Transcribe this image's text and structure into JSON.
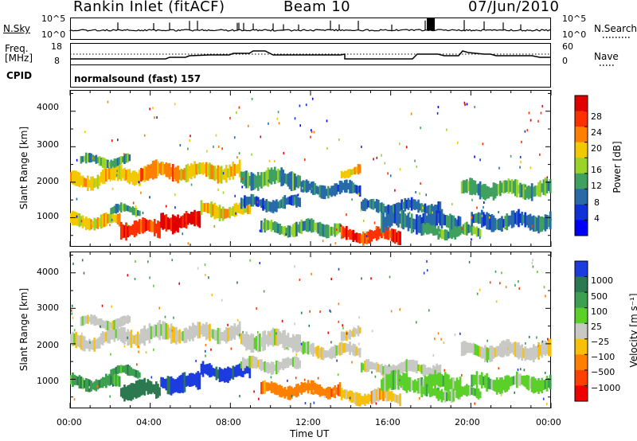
{
  "header": {
    "title": "Rankin Inlet (fitACF)",
    "beam": "Beam 10",
    "date": "07/Jun/2010"
  },
  "top_strip": {
    "left_label": "N.Sky",
    "left_ticks": [
      "10^5",
      "10^0"
    ],
    "right_ticks": [
      "10^5",
      "10^0"
    ],
    "right_label": "N.Search"
  },
  "freq_strip": {
    "left_label_1": "Freq.",
    "left_label_2": "[MHz]",
    "left_ticks": [
      "18",
      "8"
    ],
    "right_ticks": [
      "60",
      "0"
    ],
    "right_label": "Nave",
    "cpid_label": "CPID",
    "cpid_value": "normalsound (fast) 157"
  },
  "chart_data": [
    {
      "type": "heatmap",
      "ylabel": "Slant Range [km]",
      "yticks": [
        "4000",
        "3000",
        "2000",
        "1000"
      ],
      "ylim": [
        180,
        4600
      ],
      "xlim": [
        0,
        24
      ],
      "colorbar": {
        "label": "Power [dB]",
        "ticks": [
          "28",
          "24",
          "20",
          "16",
          "12",
          "8",
          "4"
        ],
        "colors": [
          "#e00000",
          "#ff3000",
          "#ff8000",
          "#f2c800",
          "#9ad428",
          "#40a060",
          "#286aa8",
          "#1030d8",
          "#0000f8"
        ]
      }
    },
    {
      "type": "heatmap",
      "ylabel": "Slant Range [km]",
      "yticks": [
        "4000",
        "3000",
        "2000",
        "1000"
      ],
      "ylim": [
        180,
        4600
      ],
      "xlim": [
        0,
        24
      ],
      "xlabel": "Time UT",
      "xticks": [
        "00:00",
        "04:00",
        "08:00",
        "12:00",
        "16:00",
        "20:00",
        "00:00"
      ],
      "colorbar": {
        "label": "Velocity [m s⁻¹]",
        "ticks": [
          "1000",
          "500",
          "100",
          "25",
          "−25",
          "−100",
          "−500",
          "−1000"
        ],
        "colors": [
          "#1c3ce0",
          "#2c7850",
          "#3ca050",
          "#5ad028",
          "#c8c8c4",
          "#f8c008",
          "#ff8000",
          "#ff4000",
          "#f00000"
        ]
      }
    }
  ]
}
